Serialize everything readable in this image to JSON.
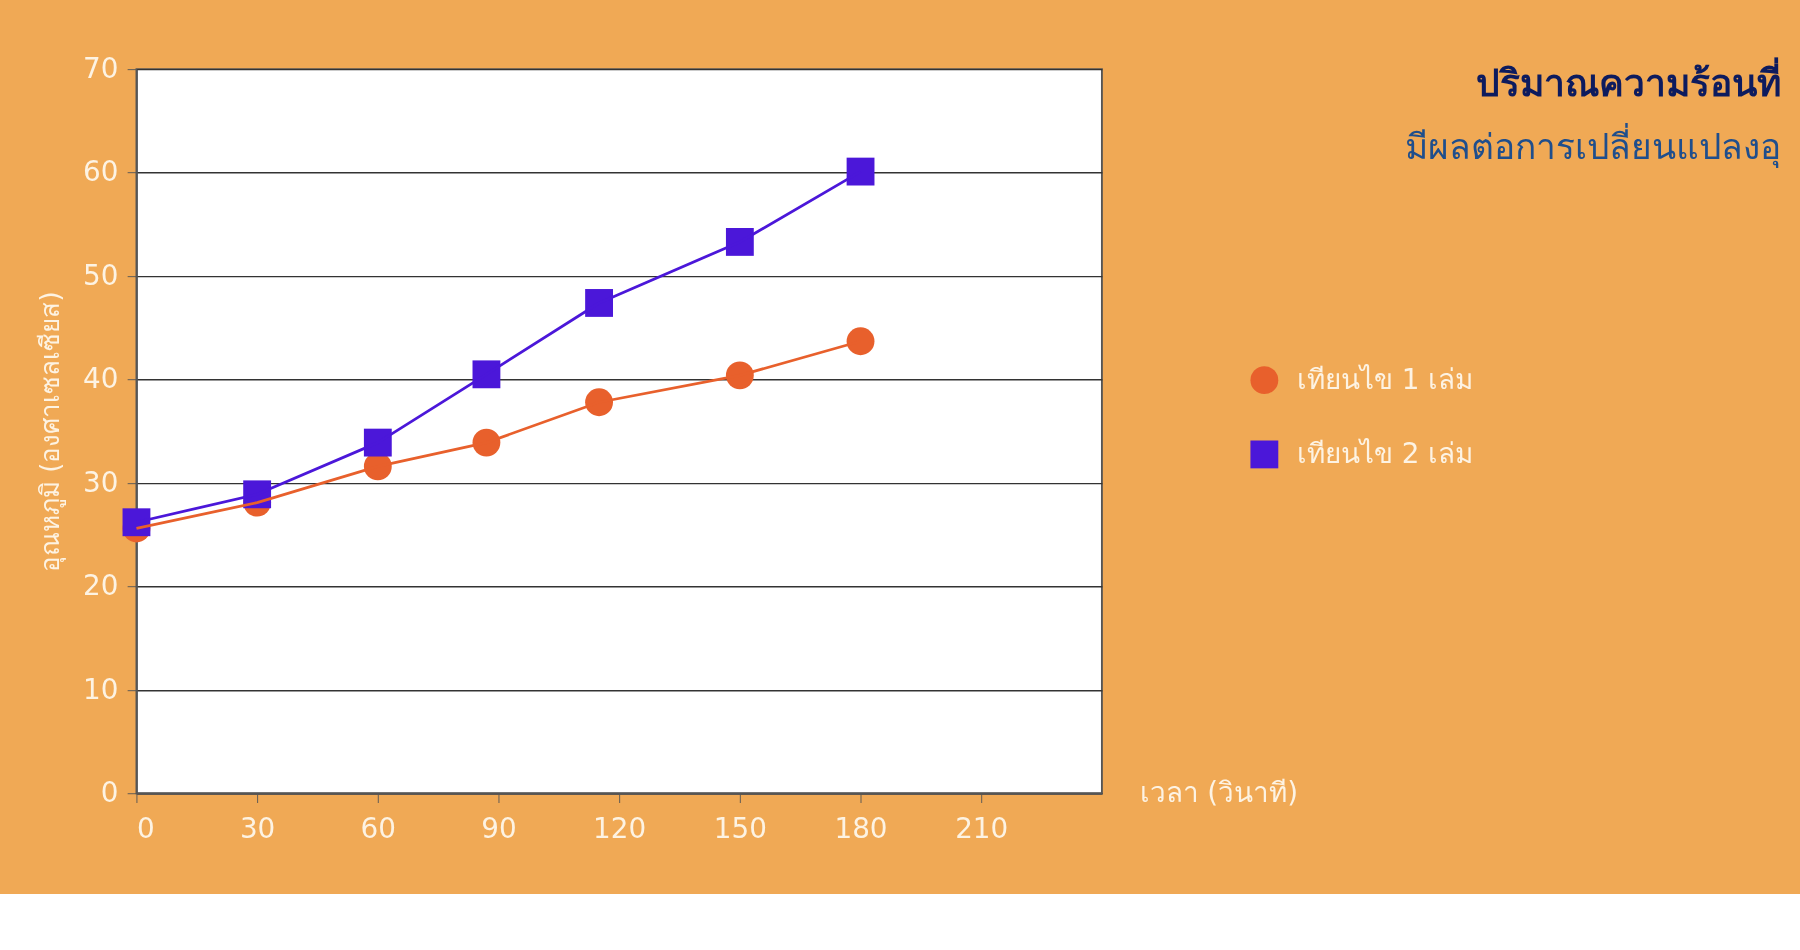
{
  "chart_data": {
    "type": "line",
    "title": "ปริมาณความร้อนที่",
    "subtitle": "มีผลต่อการเปลี่ยนแปลงอุ",
    "xlabel": "เวลา (วินาที)",
    "ylabel": "อุณหภูมิ (องศาเซลเซียส)",
    "x": [
      0,
      30,
      60,
      87,
      115,
      150,
      180
    ],
    "series": [
      {
        "name": "เทียนไข 1 เล่ม",
        "color": "#e8602c",
        "marker": "circle",
        "values": [
          25.6,
          28.1,
          31.6,
          33.9,
          37.8,
          40.4,
          43.7
        ]
      },
      {
        "name": "เทียนไข 2 เล่ม",
        "color": "#4b17d9",
        "marker": "square",
        "values": [
          26.2,
          28.9,
          33.9,
          40.5,
          47.4,
          53.3,
          60.1
        ]
      }
    ],
    "xlim": [
      0,
      240
    ],
    "xticks": [
      0,
      30,
      60,
      90,
      120,
      150,
      180,
      210
    ],
    "ylim": [
      0,
      70
    ],
    "yticks": [
      0,
      10,
      20,
      30,
      40,
      50,
      60,
      70
    ],
    "grid": "y",
    "legend": "right",
    "line_style": "solid"
  }
}
